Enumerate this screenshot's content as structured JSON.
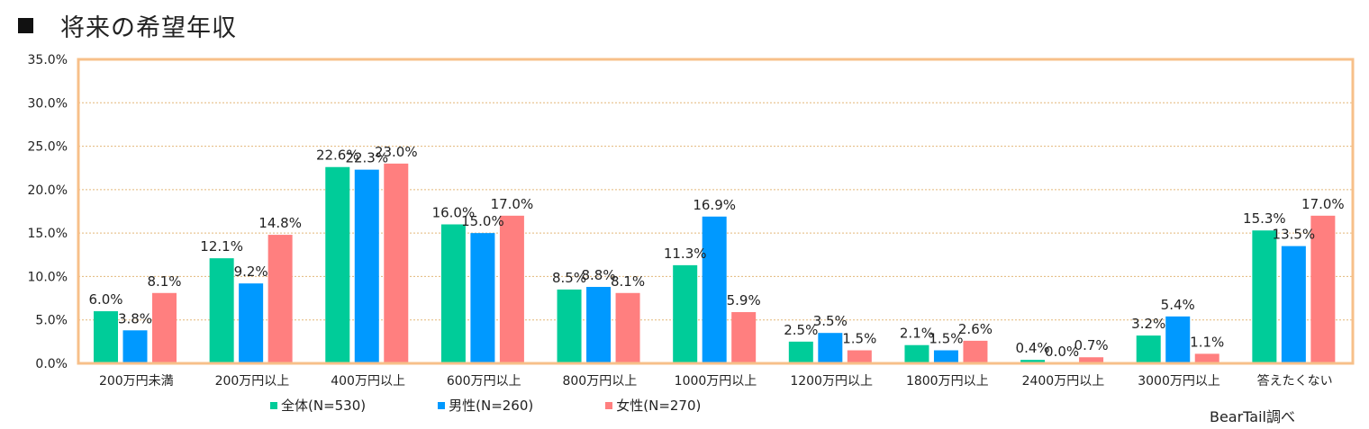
{
  "page": {
    "title": "将来の希望年収",
    "source": "BearTail調べ"
  },
  "chart_data": {
    "type": "bar",
    "title": "将来の希望年収",
    "categories": [
      "200万円未満",
      "200万円以上",
      "400万円以上",
      "600万円以上",
      "800万円以上",
      "1000万円以上",
      "1200万円以上",
      "1800万円以上",
      "2400万円以上",
      "3000万円以上",
      "答えたくない"
    ],
    "series": [
      {
        "name": "全体(N=530)",
        "color": "#00cc99",
        "values": [
          6.0,
          12.1,
          22.6,
          16.0,
          8.5,
          11.3,
          2.5,
          2.1,
          0.4,
          3.2,
          15.3
        ]
      },
      {
        "name": "男性(N=260)",
        "color": "#0099ff",
        "values": [
          3.8,
          9.2,
          22.3,
          15.0,
          8.8,
          16.9,
          3.5,
          1.5,
          0.0,
          5.4,
          13.5
        ]
      },
      {
        "name": "女性(N=270)",
        "color": "#ff7f7f",
        "values": [
          8.1,
          14.8,
          23.0,
          17.0,
          8.1,
          5.9,
          1.5,
          2.6,
          0.7,
          1.1,
          17.0
        ]
      }
    ],
    "ylim": [
      0,
      35
    ],
    "yticks": [
      0,
      5,
      10,
      15,
      20,
      25,
      30,
      35
    ],
    "ytick_labels": [
      "0.0%",
      "5.0%",
      "10.0%",
      "15.0%",
      "20.0%",
      "25.0%",
      "30.0%",
      "35.0%"
    ],
    "data_labels": [
      [
        "6.0%",
        "12.1%",
        "22.6%",
        "16.0%",
        "8.5%",
        "11.3%",
        "2.5%",
        "2.1%",
        "0.4%",
        "3.2%",
        "15.3%"
      ],
      [
        "3.8%",
        "9.2%",
        "22.3%",
        "15.0%",
        "8.8%",
        "16.9%",
        "3.5%",
        "1.5%",
        "0.0%",
        "5.4%",
        "13.5%"
      ],
      [
        "8.1%",
        "14.8%",
        "23.0%",
        "17.0%",
        "8.1%",
        "5.9%",
        "1.5%",
        "2.6%",
        "0.7%",
        "1.1%",
        "17.0%"
      ]
    ],
    "grid": true,
    "legend": "bottom",
    "frame_color": "#f7c08a",
    "grid_color": "#e3b779"
  }
}
